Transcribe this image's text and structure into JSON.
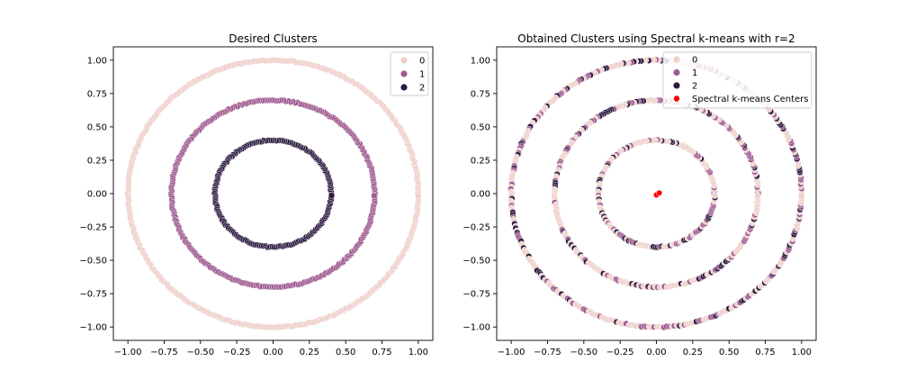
{
  "chart_data": [
    {
      "type": "scatter",
      "title": "Desired Clusters",
      "xlabel": "",
      "ylabel": "",
      "xlim": [
        -1.1,
        1.1
      ],
      "ylim": [
        -1.1,
        1.1
      ],
      "xticks": [
        -1.0,
        -0.75,
        -0.5,
        -0.25,
        0.0,
        0.25,
        0.5,
        0.75,
        1.0
      ],
      "yticks": [
        -1.0,
        -0.75,
        -0.5,
        -0.25,
        0.0,
        0.25,
        0.5,
        0.75,
        1.0
      ],
      "xtick_labels": [
        "−1.00",
        "−0.75",
        "−0.50",
        "−0.25",
        "0.00",
        "0.25",
        "0.50",
        "0.75",
        "1.00"
      ],
      "ytick_labels": [
        "−1.00",
        "−0.75",
        "−0.50",
        "−0.25",
        "0.00",
        "0.25",
        "0.50",
        "0.75",
        "1.00"
      ],
      "grid": false,
      "legend_position": "top-right",
      "legend": [
        {
          "label": "0",
          "color": "#efd0cb"
        },
        {
          "label": "1",
          "color": "#9f5a90"
        },
        {
          "label": "2",
          "color": "#2b1a3f"
        }
      ],
      "rings": [
        {
          "label": "0",
          "radius": 1.0,
          "color": "#efd0cb"
        },
        {
          "label": "1",
          "radius": 0.7,
          "color": "#9f5a90"
        },
        {
          "label": "2",
          "radius": 0.4,
          "color": "#2b1a3f"
        }
      ],
      "colored_by": "true_cluster"
    },
    {
      "type": "scatter",
      "title": "Obtained Clusters using Spectral k-means with r=2",
      "xlabel": "",
      "ylabel": "",
      "xlim": [
        -1.1,
        1.1
      ],
      "ylim": [
        -1.1,
        1.1
      ],
      "xticks": [
        -1.0,
        -0.75,
        -0.5,
        -0.25,
        0.0,
        0.25,
        0.5,
        0.75,
        1.0
      ],
      "yticks": [
        -1.0,
        -0.75,
        -0.5,
        -0.25,
        0.0,
        0.25,
        0.5,
        0.75,
        1.0
      ],
      "xtick_labels": [
        "−1.00",
        "−0.75",
        "−0.50",
        "−0.25",
        "0.00",
        "0.25",
        "0.50",
        "0.75",
        "1.00"
      ],
      "ytick_labels": [
        "−1.00",
        "−0.75",
        "−0.50",
        "−0.25",
        "0.00",
        "0.25",
        "0.50",
        "0.75",
        "1.00"
      ],
      "grid": false,
      "legend_position": "top-right",
      "legend": [
        {
          "label": "0",
          "color": "#efd0cb"
        },
        {
          "label": "1",
          "color": "#9f5a90"
        },
        {
          "label": "2",
          "color": "#2b1a3f"
        },
        {
          "label": "Spectral k-means Centers",
          "color": "#ff0000"
        }
      ],
      "rings": [
        {
          "radius": 1.0
        },
        {
          "radius": 0.7
        },
        {
          "radius": 0.4
        }
      ],
      "colored_by": "mixed_assignments",
      "centers": [
        {
          "x": 0.0,
          "y": -0.01
        },
        {
          "x": 0.02,
          "y": 0.005
        }
      ],
      "center_color": "#ff0000"
    }
  ]
}
